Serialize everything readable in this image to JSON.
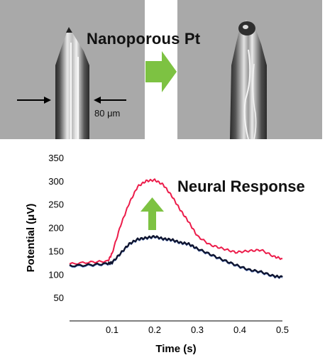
{
  "labels": {
    "process": "Nanoporous Pt",
    "scale": "80 μm",
    "chart_heading": "Neural Response"
  },
  "colors": {
    "arrow": "#7dc242",
    "coated_trace": "#ec1c4a",
    "uncoated_trace": "#0f1530",
    "photo_bg": "#a9a9a9"
  },
  "chart_data": {
    "type": "line",
    "xlabel": "Time (s)",
    "ylabel": "Potential (μV)",
    "xlim": [
      0,
      0.5
    ],
    "ylim": [
      0,
      350
    ],
    "xticks": [
      "0.1",
      "0.2",
      "0.3",
      "0.4",
      "0.5"
    ],
    "yticks": [
      "50",
      "100",
      "150",
      "200",
      "250",
      "300",
      "350"
    ],
    "series": [
      {
        "color": "#ec1c4a",
        "x": [
          0.0,
          0.05,
          0.09,
          0.1,
          0.12,
          0.14,
          0.16,
          0.18,
          0.2,
          0.22,
          0.24,
          0.26,
          0.28,
          0.3,
          0.33,
          0.36,
          0.39,
          0.42,
          0.45,
          0.48,
          0.5
        ],
        "y": [
          122,
          126,
          128,
          145,
          205,
          252,
          288,
          300,
          302,
          292,
          268,
          238,
          212,
          182,
          163,
          155,
          147,
          150,
          152,
          138,
          133
        ]
      },
      {
        "color": "#0f1530",
        "x": [
          0.0,
          0.05,
          0.09,
          0.1,
          0.12,
          0.14,
          0.16,
          0.18,
          0.2,
          0.22,
          0.24,
          0.26,
          0.28,
          0.3,
          0.33,
          0.36,
          0.39,
          0.42,
          0.45,
          0.48,
          0.5
        ],
        "y": [
          118,
          120,
          123,
          125,
          145,
          165,
          175,
          178,
          181,
          176,
          174,
          168,
          165,
          155,
          143,
          131,
          120,
          110,
          105,
          96,
          94
        ]
      }
    ]
  }
}
